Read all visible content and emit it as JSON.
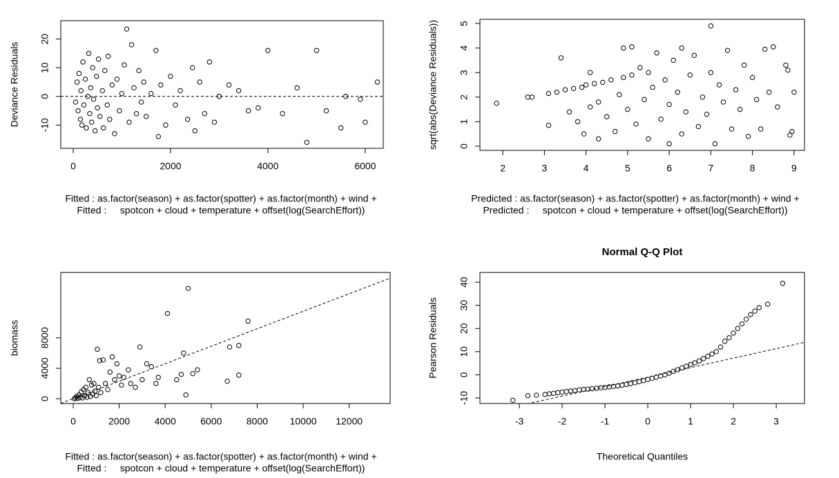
{
  "chart_data": [
    {
      "type": "scatter",
      "ylabel": "Deviance Residuals",
      "xlabel": [
        "Fitted : as.factor(season) + as.factor(spotter) + as.factor(month) + wind +",
        "Fitted :     spotcon + cloud + temperature + offset(log(SearchEffort))"
      ],
      "xlim": [
        -255,
        6370
      ],
      "ylim": [
        -18.1,
        26.4
      ],
      "xticks": [
        0,
        2000,
        4000,
        6000
      ],
      "yticks": [
        -10,
        0,
        10,
        20
      ],
      "hline": 0,
      "x": [
        50,
        80,
        100,
        120,
        150,
        160,
        180,
        200,
        220,
        250,
        270,
        300,
        320,
        340,
        360,
        380,
        400,
        420,
        450,
        480,
        500,
        520,
        550,
        600,
        620,
        650,
        700,
        720,
        750,
        800,
        850,
        900,
        950,
        1000,
        1050,
        1100,
        1150,
        1200,
        1250,
        1300,
        1350,
        1400,
        1450,
        1500,
        1600,
        1700,
        1750,
        1800,
        1900,
        2000,
        2100,
        2200,
        2350,
        2450,
        2500,
        2600,
        2700,
        2800,
        2900,
        3000,
        3200,
        3400,
        3600,
        3800,
        4000,
        4300,
        4600,
        4800,
        5000,
        5200,
        5500,
        5600,
        5900,
        6000,
        6250
      ],
      "values": [
        -2,
        5,
        -5,
        8,
        -8,
        2,
        -10,
        12,
        -3,
        6,
        -11,
        0,
        15,
        -6,
        3,
        -9,
        10,
        -1,
        -12,
        7,
        -4,
        13,
        -7,
        2,
        -11,
        9,
        -3,
        14,
        -8,
        4,
        -13,
        6,
        -5,
        1,
        11,
        23.5,
        -9,
        18,
        3,
        -6,
        9,
        -2,
        5,
        -7,
        1,
        16,
        -14,
        4,
        -10,
        7,
        -3,
        2,
        -8,
        10,
        -12,
        5,
        -6,
        12,
        -9,
        0,
        4,
        2,
        -5,
        -4,
        16,
        -6,
        3,
        -16,
        16,
        -5,
        -11,
        0,
        -1,
        -9,
        5
      ]
    },
    {
      "type": "scatter",
      "ylabel": "sqrt(abs(Deviance Residuals))",
      "xlabel": [
        "Predicted : as.factor(season) + as.factor(spotter) + as.factor(month) + wind +",
        "Predicted :     spotcon + cloud + temperature + offset(log(SearchEffort))"
      ],
      "xlim": [
        1.45,
        9.25
      ],
      "ylim": [
        -0.17,
        5.17
      ],
      "xticks": [
        2,
        3,
        4,
        5,
        6,
        7,
        8,
        9
      ],
      "yticks": [
        0,
        1,
        2,
        3,
        4,
        5
      ],
      "x": [
        1.85,
        2.6,
        2.7,
        3.1,
        3.1,
        3.3,
        3.4,
        3.5,
        3.6,
        3.7,
        3.8,
        3.9,
        3.95,
        4.0,
        4.1,
        4.1,
        4.2,
        4.3,
        4.3,
        4.4,
        4.5,
        4.6,
        4.7,
        4.8,
        4.9,
        4.9,
        5.0,
        5.1,
        5.1,
        5.2,
        5.3,
        5.4,
        5.5,
        5.5,
        5.6,
        5.7,
        5.8,
        5.9,
        6.0,
        6.0,
        6.1,
        6.2,
        6.3,
        6.3,
        6.4,
        6.5,
        6.6,
        6.7,
        6.8,
        6.9,
        7.0,
        7.0,
        7.1,
        7.2,
        7.3,
        7.4,
        7.5,
        7.6,
        7.7,
        7.8,
        7.9,
        8.0,
        8.1,
        8.2,
        8.3,
        8.4,
        8.5,
        8.6,
        8.8,
        8.9,
        8.95,
        9.0,
        8.85
      ],
      "values": [
        1.75,
        2.0,
        2.0,
        0.85,
        2.15,
        2.2,
        3.6,
        2.3,
        1.4,
        2.35,
        1.0,
        2.4,
        0.5,
        2.5,
        3.0,
        1.6,
        2.55,
        0.3,
        1.8,
        2.6,
        1.2,
        2.7,
        0.6,
        2.1,
        2.8,
        4.0,
        1.5,
        4.05,
        2.9,
        0.9,
        3.2,
        1.9,
        0.3,
        3.0,
        2.4,
        3.8,
        1.1,
        2.7,
        0.1,
        1.7,
        3.5,
        2.2,
        4.0,
        0.5,
        1.4,
        2.9,
        3.7,
        0.8,
        2.0,
        1.3,
        4.9,
        3.0,
        0.1,
        2.5,
        1.8,
        3.9,
        0.7,
        2.3,
        1.5,
        3.3,
        0.4,
        2.8,
        1.9,
        0.7,
        3.95,
        2.2,
        4.05,
        1.6,
        3.3,
        0.45,
        0.6,
        2.2,
        3.1
      ]
    },
    {
      "type": "scatter",
      "ylabel": "biomass",
      "xlabel": [
        "Fitted : as.factor(season) + as.factor(spotter) + as.factor(month) + wind +",
        "Fitted :     spotcon + cloud + temperature + offset(log(SearchEffort))"
      ],
      "xlim": [
        -540,
        13780
      ],
      "ylim": [
        -630,
        16600
      ],
      "xticks": [
        0,
        2000,
        4000,
        6000,
        8000,
        10000,
        12000
      ],
      "yticks": [
        0,
        4000,
        8000
      ],
      "abline": {
        "intercept": 0,
        "slope": 1.15
      },
      "x": [
        50,
        100,
        150,
        200,
        250,
        300,
        350,
        400,
        450,
        500,
        550,
        600,
        650,
        700,
        750,
        800,
        850,
        900,
        950,
        1000,
        1050,
        1100,
        1150,
        1200,
        1300,
        1400,
        1500,
        1600,
        1700,
        1800,
        1900,
        2000,
        2100,
        2200,
        2400,
        2500,
        2700,
        2900,
        3000,
        3200,
        3400,
        3600,
        3700,
        4100,
        4500,
        4700,
        4800,
        4900,
        5000,
        5200,
        5400,
        6700,
        6800,
        7200,
        7200,
        7600
      ],
      "values": [
        0,
        100,
        300,
        50,
        500,
        200,
        900,
        100,
        1200,
        400,
        1500,
        200,
        800,
        2500,
        300,
        1800,
        600,
        2000,
        1000,
        400,
        6500,
        1500,
        5000,
        800,
        5100,
        2000,
        1200,
        3500,
        5500,
        2500,
        4600,
        3000,
        1800,
        2800,
        3800,
        2000,
        1500,
        6800,
        2500,
        4600,
        4200,
        2000,
        2800,
        11200,
        2500,
        3200,
        6000,
        500,
        14500,
        3300,
        3800,
        2300,
        6800,
        7000,
        3100,
        10200
      ]
    },
    {
      "type": "scatter",
      "title": "Normal Q-Q Plot",
      "ylabel": "Pearson Residuals",
      "xlabel": [
        "Theoretical Quantiles"
      ],
      "xlim": [
        -3.92,
        3.66
      ],
      "ylim": [
        -12.4,
        44.2
      ],
      "xticks": [
        -3,
        -2,
        -1,
        0,
        1,
        2,
        3
      ],
      "yticks": [
        -10,
        0,
        10,
        20,
        30,
        40
      ],
      "abline": {
        "intercept": -1,
        "slope": 4.1
      },
      "x": [
        -3.15,
        -2.8,
        -2.6,
        -2.4,
        -2.3,
        -2.2,
        -2.1,
        -2.0,
        -1.9,
        -1.8,
        -1.7,
        -1.6,
        -1.5,
        -1.4,
        -1.3,
        -1.2,
        -1.1,
        -1.0,
        -0.9,
        -0.8,
        -0.7,
        -0.6,
        -0.5,
        -0.4,
        -0.3,
        -0.2,
        -0.1,
        0,
        0.1,
        0.2,
        0.3,
        0.4,
        0.5,
        0.6,
        0.7,
        0.8,
        0.9,
        1.0,
        1.1,
        1.2,
        1.3,
        1.4,
        1.5,
        1.6,
        1.7,
        1.8,
        1.9,
        2.0,
        2.1,
        2.2,
        2.3,
        2.4,
        2.5,
        2.6,
        2.8,
        3.15
      ],
      "values": [
        -11,
        -9,
        -8.8,
        -8.5,
        -8.2,
        -8,
        -7.7,
        -7.5,
        -7.2,
        -7,
        -6.8,
        -6.5,
        -6.3,
        -6.2,
        -6,
        -5.8,
        -5.6,
        -5.5,
        -5.2,
        -5.0,
        -4.8,
        -4.5,
        -4.2,
        -3.8,
        -3.4,
        -3.0,
        -2.5,
        -2,
        -1.5,
        -1,
        -0.5,
        0,
        0.7,
        1.5,
        2.2,
        3,
        3.7,
        4.5,
        5.2,
        6,
        7,
        8,
        9,
        10,
        12,
        14.5,
        16,
        18,
        20,
        22,
        24,
        26,
        27.5,
        29,
        30.5,
        39.5
      ]
    }
  ]
}
